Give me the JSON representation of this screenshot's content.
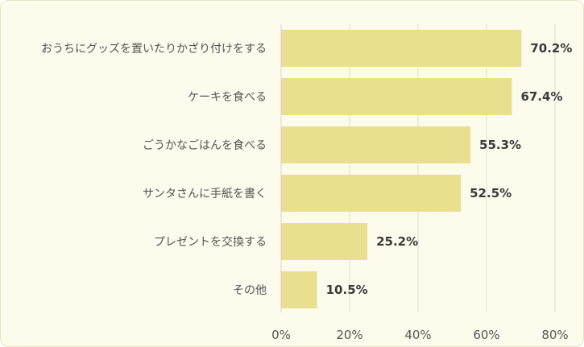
{
  "chart_data": {
    "type": "bar",
    "orientation": "horizontal",
    "categories": [
      "おうちにグッズを置いたりかざり付けをする",
      "ケーキを食べる",
      "ごうかなごはんを食べる",
      "サンタさんに手紙を書く",
      "プレゼントを交換する",
      "その他"
    ],
    "values": [
      70.2,
      67.4,
      55.3,
      52.5,
      25.2,
      10.5
    ],
    "value_labels": [
      "70.2%",
      "67.4%",
      "55.3%",
      "52.5%",
      "25.2%",
      "10.5%"
    ],
    "x_ticks": [
      "0%",
      "20%",
      "40%",
      "60%",
      "80%"
    ],
    "xlim": [
      0,
      80
    ],
    "grid": true,
    "bar_color": "#e9e08f",
    "background_color": "#fdfbec",
    "gridline_color": "#e0ddd0"
  }
}
